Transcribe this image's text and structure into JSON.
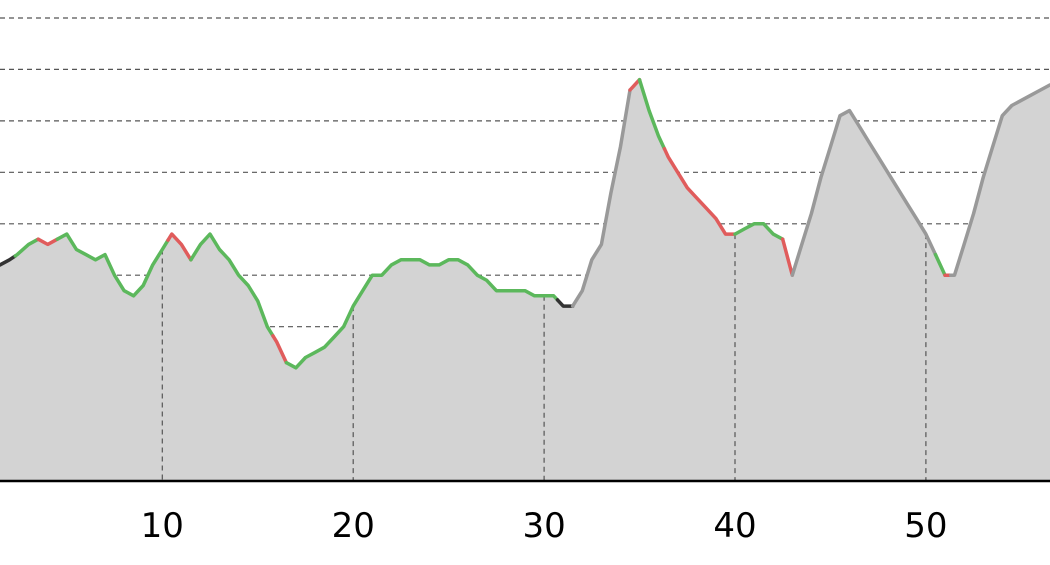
{
  "chart_data": {
    "type": "area",
    "title": "",
    "xlabel": "",
    "ylabel": "",
    "xlim": [
      1.5,
      56.5
    ],
    "ylim": [
      0,
      9
    ],
    "x_ticks": [
      10,
      20,
      30,
      40,
      50
    ],
    "x_tick_labels": [
      "10",
      "20",
      "30",
      "40",
      "50"
    ],
    "y_gridlines": [
      1,
      2,
      3,
      4,
      5,
      6,
      7,
      8,
      9
    ],
    "grid": true,
    "grid_style": "dashed",
    "fill_color": "#d3d3d3",
    "profile": [
      [
        1.5,
        4.2
      ],
      [
        2.0,
        4.3
      ],
      [
        2.4,
        4.4
      ],
      [
        3.0,
        4.6
      ],
      [
        3.5,
        4.7
      ],
      [
        4.0,
        4.6
      ],
      [
        4.5,
        4.7
      ],
      [
        5.0,
        4.8
      ],
      [
        5.5,
        4.5
      ],
      [
        6.0,
        4.4
      ],
      [
        6.5,
        4.3
      ],
      [
        7.0,
        4.4
      ],
      [
        7.5,
        4.0
      ],
      [
        8.0,
        3.7
      ],
      [
        8.5,
        3.6
      ],
      [
        9.0,
        3.8
      ],
      [
        9.5,
        4.2
      ],
      [
        10.0,
        4.5
      ],
      [
        10.5,
        4.8
      ],
      [
        11.0,
        4.6
      ],
      [
        11.5,
        4.3
      ],
      [
        12.0,
        4.6
      ],
      [
        12.5,
        4.8
      ],
      [
        13.0,
        4.5
      ],
      [
        13.5,
        4.3
      ],
      [
        14.0,
        4.0
      ],
      [
        14.5,
        3.8
      ],
      [
        15.0,
        3.5
      ],
      [
        15.5,
        3.0
      ],
      [
        16.0,
        2.7
      ],
      [
        16.5,
        2.3
      ],
      [
        17.0,
        2.2
      ],
      [
        17.5,
        2.4
      ],
      [
        18.0,
        2.5
      ],
      [
        18.5,
        2.6
      ],
      [
        19.0,
        2.8
      ],
      [
        19.5,
        3.0
      ],
      [
        20.0,
        3.4
      ],
      [
        20.5,
        3.7
      ],
      [
        21.0,
        4.0
      ],
      [
        21.5,
        4.0
      ],
      [
        22.0,
        4.2
      ],
      [
        22.5,
        4.3
      ],
      [
        23.0,
        4.3
      ],
      [
        23.5,
        4.3
      ],
      [
        24.0,
        4.2
      ],
      [
        24.5,
        4.2
      ],
      [
        25.0,
        4.3
      ],
      [
        25.5,
        4.3
      ],
      [
        26.0,
        4.2
      ],
      [
        26.5,
        4.0
      ],
      [
        27.0,
        3.9
      ],
      [
        27.5,
        3.7
      ],
      [
        28.0,
        3.7
      ],
      [
        28.5,
        3.7
      ],
      [
        29.0,
        3.7
      ],
      [
        29.5,
        3.6
      ],
      [
        30.0,
        3.6
      ],
      [
        30.5,
        3.6
      ],
      [
        31.0,
        3.4
      ],
      [
        31.5,
        3.4
      ],
      [
        32.0,
        3.7
      ],
      [
        32.5,
        4.3
      ],
      [
        33.0,
        4.6
      ],
      [
        33.5,
        5.6
      ],
      [
        34.0,
        6.5
      ],
      [
        34.5,
        7.6
      ],
      [
        35.0,
        7.8
      ],
      [
        35.5,
        7.2
      ],
      [
        36.0,
        6.7
      ],
      [
        36.5,
        6.3
      ],
      [
        37.0,
        6.0
      ],
      [
        37.5,
        5.7
      ],
      [
        38.0,
        5.5
      ],
      [
        38.5,
        5.3
      ],
      [
        39.0,
        5.1
      ],
      [
        39.5,
        4.8
      ],
      [
        40.0,
        4.8
      ],
      [
        40.5,
        4.9
      ],
      [
        41.0,
        5.0
      ],
      [
        41.5,
        5.0
      ],
      [
        42.0,
        4.8
      ],
      [
        42.5,
        4.7
      ],
      [
        43.0,
        4.0
      ],
      [
        43.5,
        4.6
      ],
      [
        44.0,
        5.2
      ],
      [
        44.5,
        5.9
      ],
      [
        45.0,
        6.5
      ],
      [
        45.5,
        7.1
      ],
      [
        46.0,
        7.2
      ],
      [
        46.5,
        6.9
      ],
      [
        47.0,
        6.6
      ],
      [
        47.5,
        6.3
      ],
      [
        48.0,
        6.0
      ],
      [
        48.5,
        5.7
      ],
      [
        49.0,
        5.4
      ],
      [
        49.5,
        5.1
      ],
      [
        50.0,
        4.8
      ],
      [
        50.5,
        4.4
      ],
      [
        51.0,
        4.0
      ],
      [
        51.5,
        4.0
      ],
      [
        52.0,
        4.6
      ],
      [
        52.5,
        5.2
      ],
      [
        53.0,
        5.9
      ],
      [
        53.5,
        6.5
      ],
      [
        54.0,
        7.1
      ],
      [
        54.5,
        7.3
      ],
      [
        55.0,
        7.4
      ],
      [
        55.5,
        7.5
      ],
      [
        56.0,
        7.6
      ],
      [
        56.5,
        7.7
      ]
    ],
    "segments": [
      {
        "range": [
          1.5,
          2.3
        ],
        "color": "#333333"
      },
      {
        "range": [
          2.3,
          3.5
        ],
        "color": "#5cb85c"
      },
      {
        "range": [
          3.5,
          4.5
        ],
        "color": "#e05c5c"
      },
      {
        "range": [
          4.5,
          10.3
        ],
        "color": "#5cb85c"
      },
      {
        "range": [
          10.3,
          11.5
        ],
        "color": "#e05c5c"
      },
      {
        "range": [
          11.5,
          15.8
        ],
        "color": "#5cb85c"
      },
      {
        "range": [
          15.8,
          16.5
        ],
        "color": "#e05c5c"
      },
      {
        "range": [
          16.5,
          30.7
        ],
        "color": "#5cb85c"
      },
      {
        "range": [
          30.7,
          31.5
        ],
        "color": "#333333"
      },
      {
        "range": [
          31.5,
          34.5
        ],
        "color": "#999999"
      },
      {
        "range": [
          34.5,
          35.0
        ],
        "color": "#e05c5c"
      },
      {
        "range": [
          35.0,
          36.3
        ],
        "color": "#5cb85c"
      },
      {
        "range": [
          36.3,
          40.0
        ],
        "color": "#e05c5c"
      },
      {
        "range": [
          40.0,
          42.5
        ],
        "color": "#5cb85c"
      },
      {
        "range": [
          42.5,
          43.0
        ],
        "color": "#e05c5c"
      },
      {
        "range": [
          43.0,
          50.5
        ],
        "color": "#999999"
      },
      {
        "range": [
          50.5,
          51.0
        ],
        "color": "#5cb85c"
      },
      {
        "range": [
          51.0,
          51.3
        ],
        "color": "#e05c5c"
      },
      {
        "range": [
          51.3,
          56.5
        ],
        "color": "#999999"
      }
    ]
  }
}
